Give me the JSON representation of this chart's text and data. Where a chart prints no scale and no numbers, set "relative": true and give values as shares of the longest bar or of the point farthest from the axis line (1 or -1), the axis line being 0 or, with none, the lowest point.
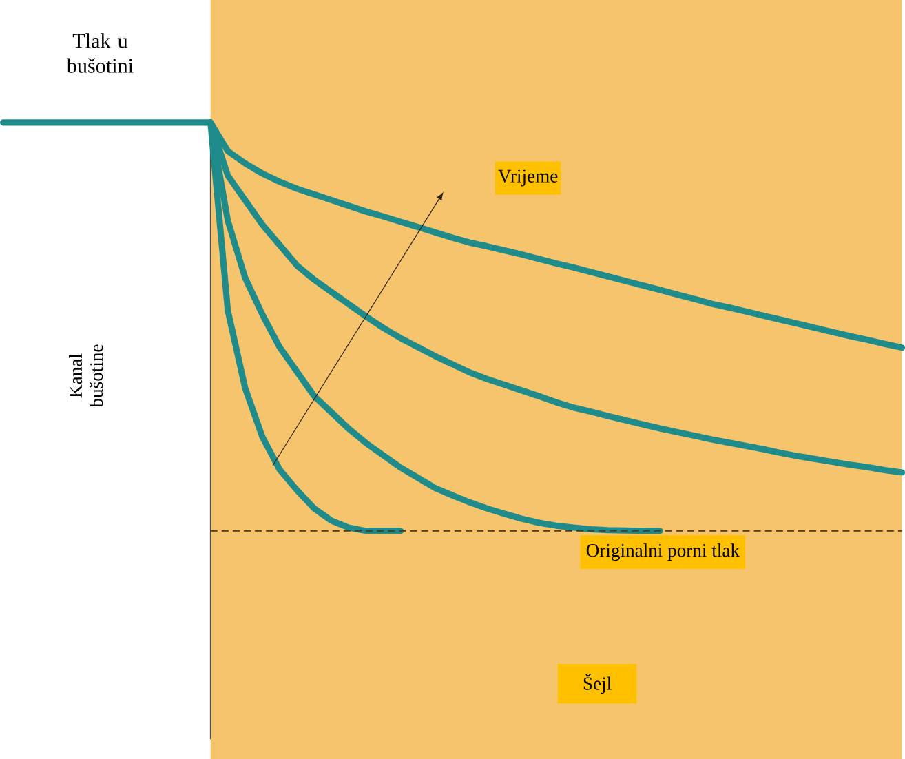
{
  "chart_data": {
    "type": "line",
    "relative": true,
    "line_style": "solid",
    "categories": [
      null,
      null,
      null,
      null,
      null,
      null,
      null,
      null,
      null,
      null,
      null,
      null,
      null,
      null,
      null,
      null,
      null,
      null,
      null,
      null,
      null,
      null,
      null,
      null,
      null,
      null,
      null,
      null,
      null,
      null,
      null,
      null,
      null,
      null,
      null,
      null,
      null,
      null,
      null,
      null,
      null,
      null,
      null,
      null,
      null,
      null,
      null,
      null,
      null,
      null,
      null,
      null,
      null
    ],
    "series": [
      {
        "color": "#1f8b8b",
        "values": [
          1,
          1,
          1,
          1,
          1,
          1,
          1,
          1,
          1,
          1,
          1,
          1,
          1,
          null,
          null,
          null,
          null,
          null,
          null,
          null,
          null,
          null,
          null,
          null,
          null,
          null,
          null,
          null,
          null,
          null,
          null,
          null,
          null,
          null,
          null,
          null,
          null,
          null,
          null,
          null,
          null,
          null,
          null,
          null,
          null,
          null,
          null,
          null,
          null,
          null,
          null,
          null,
          null
        ]
      },
      {
        "color": "#1f8b8b",
        "values": [
          null,
          null,
          null,
          null,
          null,
          null,
          null,
          null,
          null,
          null,
          null,
          null,
          1,
          0.54,
          0.35,
          0.23,
          0.15,
          0.1,
          0.055,
          0.025,
          0.008,
          0,
          0,
          0,
          null,
          null,
          null,
          null,
          null,
          null,
          null,
          null,
          null,
          null,
          null,
          null,
          null,
          null,
          null,
          null,
          null,
          null,
          null,
          null,
          null,
          null,
          null,
          null,
          null,
          null,
          null,
          null,
          null
        ]
      },
      {
        "color": "#1f8b8b",
        "values": [
          null,
          null,
          null,
          null,
          null,
          null,
          null,
          null,
          null,
          null,
          null,
          null,
          1,
          0.76,
          0.62,
          0.53,
          0.45,
          0.39,
          0.33,
          0.29,
          0.25,
          0.215,
          0.185,
          0.155,
          0.13,
          0.105,
          0.087,
          0.07,
          0.055,
          0.042,
          0.03,
          0.02,
          0.013,
          0.008,
          0.004,
          0.002,
          0.001,
          0,
          0,
          null,
          null,
          null,
          null,
          null,
          null,
          null,
          null,
          null,
          null,
          null,
          null,
          null,
          null
        ]
      },
      {
        "color": "#1f8b8b",
        "values": [
          null,
          null,
          null,
          null,
          null,
          null,
          null,
          null,
          null,
          null,
          null,
          null,
          1,
          0.87,
          0.81,
          0.75,
          0.7,
          0.65,
          0.615,
          0.585,
          0.555,
          0.525,
          0.497,
          0.472,
          0.45,
          0.428,
          0.408,
          0.388,
          0.372,
          0.358,
          0.344,
          0.33,
          0.315,
          0.302,
          0.292,
          0.281,
          0.271,
          0.261,
          0.251,
          0.242,
          0.233,
          0.224,
          0.216,
          0.208,
          0.2,
          0.191,
          0.183,
          0.176,
          0.169,
          0.162,
          0.156,
          0.149,
          0.143
        ]
      },
      {
        "color": "#1f8b8b",
        "values": [
          null,
          null,
          null,
          null,
          null,
          null,
          null,
          null,
          null,
          null,
          null,
          null,
          1,
          0.93,
          0.9,
          0.875,
          0.855,
          0.838,
          0.824,
          0.81,
          0.796,
          0.782,
          0.77,
          0.757,
          0.744,
          0.731,
          0.718,
          0.706,
          0.697,
          0.687,
          0.677,
          0.666,
          0.655,
          0.645,
          0.634,
          0.623,
          0.612,
          0.601,
          0.59,
          0.579,
          0.568,
          0.556,
          0.547,
          0.537,
          0.527,
          0.517,
          0.507,
          0.497,
          0.487,
          0.477,
          0.468,
          0.458,
          0.449
        ]
      }
    ],
    "ref_lines": [
      {
        "axis": "y",
        "value": 0,
        "label": "Originalni porni tlak",
        "color": "#4a3a2a",
        "line_style": "dashed"
      }
    ],
    "annotations": [
      "Tlak u bušotini",
      "Kanal bušotine",
      "Vrijeme",
      "Šejl"
    ]
  }
}
